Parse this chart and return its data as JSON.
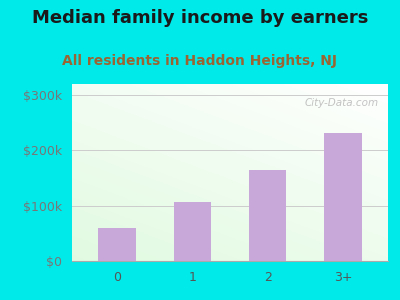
{
  "categories": [
    "0",
    "1",
    "2",
    "3+"
  ],
  "values": [
    60000,
    107000,
    165000,
    232000
  ],
  "bar_color": "#c8a8d8",
  "title": "Median family income by earners",
  "subtitle": "All residents in Haddon Heights, NJ",
  "title_fontsize": 13,
  "subtitle_fontsize": 10,
  "title_color": "#1a1a1a",
  "subtitle_color": "#996633",
  "ylabel_color": "#777777",
  "xlabel_color": "#555555",
  "outer_bg": "#00eaea",
  "ylim": [
    0,
    320000
  ],
  "yticks": [
    0,
    100000,
    200000,
    300000
  ],
  "ytick_labels": [
    "$0",
    "$100k",
    "$200k",
    "$300k"
  ],
  "watermark": "City-Data.com",
  "grid_color": "#cccccc"
}
